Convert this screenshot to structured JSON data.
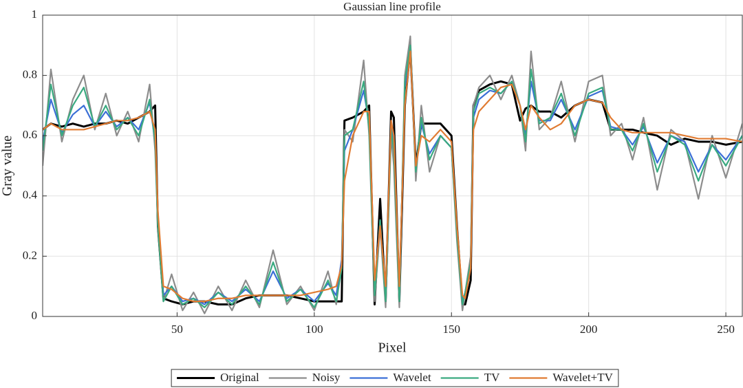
{
  "chart_data": {
    "type": "line",
    "title": "Gaussian line profile",
    "xlabel": "Pixel",
    "ylabel": "Gray value",
    "x": [
      1,
      4,
      8,
      12,
      16,
      20,
      24,
      28,
      32,
      36,
      40,
      42,
      43,
      45,
      48,
      52,
      56,
      60,
      65,
      70,
      75,
      80,
      85,
      90,
      95,
      100,
      105,
      108,
      110,
      111,
      114,
      118,
      120,
      122,
      124,
      126,
      128,
      129,
      131,
      133,
      135,
      137,
      139,
      142,
      146,
      150,
      152,
      154,
      155,
      157,
      158,
      160,
      164,
      168,
      172,
      175,
      177,
      179,
      182,
      186,
      190,
      195,
      200,
      205,
      208,
      212,
      216,
      220,
      225,
      230,
      235,
      240,
      245,
      250,
      256
    ],
    "xlim": [
      1,
      256
    ],
    "xticks": [
      50,
      100,
      150,
      200,
      250
    ],
    "ylim": [
      0,
      1
    ],
    "yticks": [
      0,
      0.2,
      0.4,
      0.6,
      0.8,
      1
    ],
    "grid": true,
    "legend": "bottom",
    "series": [
      {
        "name": "Original",
        "color": "#000000",
        "values": [
          0.62,
          0.64,
          0.63,
          0.64,
          0.63,
          0.64,
          0.64,
          0.65,
          0.64,
          0.66,
          0.68,
          0.7,
          0.3,
          0.06,
          0.05,
          0.04,
          0.05,
          0.05,
          0.04,
          0.04,
          0.06,
          0.07,
          0.07,
          0.07,
          0.06,
          0.05,
          0.05,
          0.05,
          0.05,
          0.65,
          0.66,
          0.68,
          0.7,
          0.04,
          0.39,
          0.05,
          0.68,
          0.66,
          0.05,
          0.7,
          0.89,
          0.5,
          0.64,
          0.64,
          0.64,
          0.6,
          0.3,
          0.04,
          0.04,
          0.12,
          0.7,
          0.75,
          0.77,
          0.78,
          0.77,
          0.65,
          0.69,
          0.7,
          0.68,
          0.68,
          0.66,
          0.7,
          0.72,
          0.71,
          0.62,
          0.62,
          0.62,
          0.61,
          0.6,
          0.57,
          0.59,
          0.58,
          0.58,
          0.57,
          0.58
        ]
      },
      {
        "name": "Noisy",
        "color": "#8c8c8c",
        "values": [
          0.5,
          0.82,
          0.58,
          0.72,
          0.8,
          0.62,
          0.74,
          0.6,
          0.68,
          0.58,
          0.77,
          0.55,
          0.3,
          0.05,
          0.14,
          0.02,
          0.08,
          0.01,
          0.1,
          0.02,
          0.12,
          0.03,
          0.22,
          0.04,
          0.1,
          0.02,
          0.15,
          0.04,
          0.18,
          0.62,
          0.58,
          0.85,
          0.6,
          0.05,
          0.3,
          0.03,
          0.6,
          0.5,
          0.03,
          0.8,
          0.93,
          0.45,
          0.7,
          0.48,
          0.6,
          0.56,
          0.25,
          0.02,
          0.08,
          0.2,
          0.7,
          0.76,
          0.8,
          0.72,
          0.8,
          0.7,
          0.55,
          0.88,
          0.62,
          0.66,
          0.78,
          0.58,
          0.78,
          0.8,
          0.6,
          0.64,
          0.52,
          0.66,
          0.42,
          0.62,
          0.58,
          0.39,
          0.6,
          0.46,
          0.64
        ]
      },
      {
        "name": "Wavelet",
        "color": "#3b6fd6",
        "values": [
          0.58,
          0.72,
          0.61,
          0.67,
          0.7,
          0.63,
          0.68,
          0.63,
          0.66,
          0.62,
          0.71,
          0.58,
          0.32,
          0.07,
          0.1,
          0.05,
          0.06,
          0.04,
          0.08,
          0.05,
          0.09,
          0.05,
          0.15,
          0.06,
          0.09,
          0.05,
          0.11,
          0.07,
          0.19,
          0.55,
          0.62,
          0.75,
          0.64,
          0.09,
          0.32,
          0.06,
          0.63,
          0.57,
          0.06,
          0.76,
          0.89,
          0.49,
          0.64,
          0.54,
          0.6,
          0.56,
          0.28,
          0.05,
          0.08,
          0.17,
          0.66,
          0.72,
          0.75,
          0.74,
          0.78,
          0.7,
          0.6,
          0.78,
          0.65,
          0.65,
          0.72,
          0.62,
          0.73,
          0.75,
          0.63,
          0.62,
          0.57,
          0.63,
          0.51,
          0.6,
          0.58,
          0.48,
          0.57,
          0.52,
          0.6
        ]
      },
      {
        "name": "TV",
        "color": "#3aaa80",
        "values": [
          0.55,
          0.77,
          0.6,
          0.7,
          0.76,
          0.63,
          0.7,
          0.62,
          0.66,
          0.6,
          0.72,
          0.58,
          0.3,
          0.05,
          0.1,
          0.04,
          0.06,
          0.03,
          0.08,
          0.04,
          0.1,
          0.04,
          0.18,
          0.05,
          0.09,
          0.03,
          0.12,
          0.05,
          0.16,
          0.6,
          0.62,
          0.78,
          0.62,
          0.07,
          0.32,
          0.05,
          0.62,
          0.55,
          0.05,
          0.78,
          0.9,
          0.48,
          0.66,
          0.52,
          0.6,
          0.56,
          0.27,
          0.04,
          0.08,
          0.18,
          0.68,
          0.74,
          0.76,
          0.74,
          0.78,
          0.7,
          0.58,
          0.82,
          0.64,
          0.66,
          0.74,
          0.6,
          0.74,
          0.76,
          0.62,
          0.62,
          0.55,
          0.64,
          0.48,
          0.6,
          0.57,
          0.45,
          0.57,
          0.5,
          0.6
        ]
      },
      {
        "name": "Wavelet+TV",
        "color": "#e07b32",
        "values": [
          0.62,
          0.64,
          0.62,
          0.62,
          0.62,
          0.63,
          0.64,
          0.65,
          0.65,
          0.66,
          0.68,
          0.62,
          0.35,
          0.1,
          0.09,
          0.06,
          0.05,
          0.05,
          0.06,
          0.06,
          0.07,
          0.07,
          0.07,
          0.07,
          0.07,
          0.08,
          0.09,
          0.1,
          0.17,
          0.45,
          0.6,
          0.68,
          0.68,
          0.12,
          0.3,
          0.1,
          0.65,
          0.6,
          0.1,
          0.7,
          0.88,
          0.5,
          0.6,
          0.58,
          0.62,
          0.58,
          0.3,
          0.07,
          0.06,
          0.16,
          0.62,
          0.68,
          0.72,
          0.76,
          0.77,
          0.7,
          0.62,
          0.7,
          0.66,
          0.62,
          0.64,
          0.7,
          0.72,
          0.71,
          0.66,
          0.62,
          0.61,
          0.61,
          0.61,
          0.61,
          0.6,
          0.59,
          0.59,
          0.59,
          0.58
        ]
      }
    ]
  }
}
